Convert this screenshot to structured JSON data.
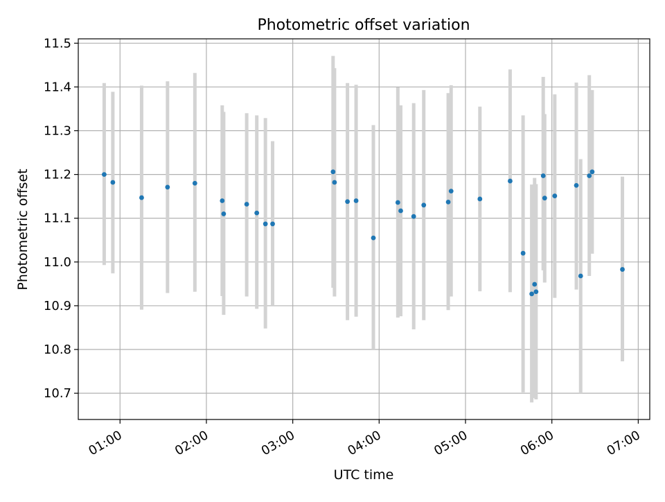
{
  "chart_data": {
    "type": "scatter",
    "title": "Photometric offset variation",
    "xlabel": "UTC time",
    "ylabel": "Photometric offset",
    "x_tick_labels": [
      "01:00",
      "02:00",
      "03:00",
      "04:00",
      "05:00",
      "06:00",
      "07:00"
    ],
    "y_tick_labels": [
      "10.7",
      "10.8",
      "10.9",
      "11.0",
      "11.1",
      "11.2",
      "11.3",
      "11.4",
      "11.5"
    ],
    "xlim": [
      "00:31",
      "07:08"
    ],
    "ylim": [
      10.64,
      11.51
    ],
    "grid": true,
    "point_color": "#1f77b4",
    "errorbar_color": "#d3d3d3",
    "series": [
      {
        "x": [
          "00:49",
          "00:55",
          "01:15",
          "01:33",
          "01:52",
          "02:11",
          "02:12",
          "02:28",
          "02:35",
          "02:41",
          "02:46",
          "03:28",
          "03:29",
          "03:38",
          "03:44",
          "03:56",
          "04:13",
          "04:15",
          "04:24",
          "04:31",
          "04:48",
          "04:50",
          "05:10",
          "05:31",
          "05:40",
          "05:46",
          "05:48",
          "05:49",
          "05:54",
          "05:55",
          "06:02",
          "06:17",
          "06:20",
          "06:26",
          "06:28",
          "06:49"
        ],
        "y": [
          11.2,
          11.182,
          11.147,
          11.171,
          11.18,
          11.14,
          11.11,
          11.132,
          11.112,
          11.087,
          11.087,
          11.206,
          11.182,
          11.138,
          11.14,
          11.055,
          11.136,
          11.117,
          11.104,
          11.13,
          11.137,
          11.162,
          11.144,
          11.185,
          11.02,
          10.927,
          10.949,
          10.932,
          11.197,
          11.146,
          11.151,
          11.175,
          10.968,
          11.197,
          11.206,
          10.983
        ],
        "yerr_low": [
          10.993,
          10.974,
          10.891,
          10.929,
          10.932,
          10.922,
          10.879,
          10.921,
          10.893,
          10.848,
          10.9,
          10.941,
          10.921,
          10.867,
          10.875,
          10.8,
          10.873,
          10.876,
          10.846,
          10.867,
          10.89,
          10.921,
          10.933,
          10.931,
          10.702,
          10.679,
          10.689,
          10.686,
          10.981,
          10.953,
          10.918,
          10.937,
          10.7,
          10.968,
          11.019,
          10.773
        ],
        "yerr_high": [
          11.409,
          11.389,
          11.403,
          11.413,
          11.432,
          11.358,
          11.343,
          11.34,
          11.335,
          11.329,
          11.276,
          11.471,
          11.443,
          11.409,
          11.405,
          11.313,
          11.399,
          11.358,
          11.363,
          11.393,
          11.386,
          11.404,
          11.355,
          11.44,
          11.335,
          11.177,
          11.192,
          11.178,
          11.423,
          11.338,
          11.383,
          11.41,
          11.235,
          11.427,
          11.393,
          11.195
        ]
      }
    ]
  }
}
